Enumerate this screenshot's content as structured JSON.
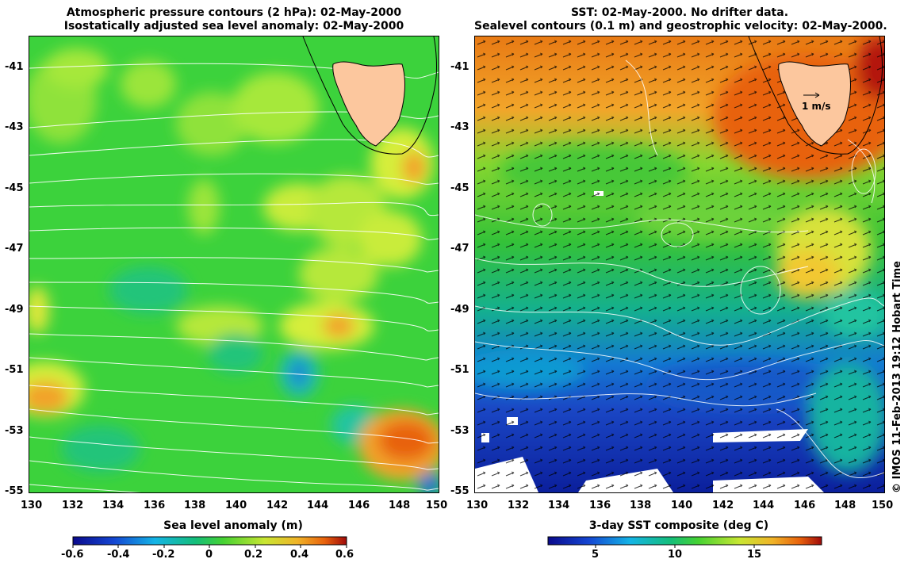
{
  "left_panel": {
    "title_line1": "Atmospheric pressure contours (2 hPa): 02-May-2000",
    "title_line2": "Isostatically adjusted sea level anomaly: 02-May-2000",
    "colorbar_label": "Sea level anomaly (m)",
    "colorbar_ticks": [
      "-0.6",
      "-0.4",
      "-0.2",
      "0",
      "0.2",
      "0.4",
      "0.6"
    ]
  },
  "right_panel": {
    "title_line1": "SST: 02-May-2000. No drifter data.",
    "title_line2": "Sealevel contours (0.1 m) and geostrophic velocity: 02-May-2000.",
    "colorbar_label": "3-day SST composite (deg C)",
    "colorbar_ticks": [
      "5",
      "10",
      "15"
    ],
    "scale_label": "1 m/s"
  },
  "axes": {
    "lon_ticks": [
      "130",
      "132",
      "134",
      "136",
      "138",
      "140",
      "142",
      "144",
      "146",
      "148",
      "150"
    ],
    "lat_ticks": [
      "-41",
      "-43",
      "-45",
      "-47",
      "-49",
      "-51",
      "-53",
      "-55"
    ]
  },
  "credit": "© IMOS 11-Feb-2013 19:12 Hobart Time",
  "colors": {
    "land": "#fcc79e",
    "sla_base": "#3cd23c",
    "sst_cold": "#0a2fb4",
    "sst_warm": "#e8620c"
  }
}
